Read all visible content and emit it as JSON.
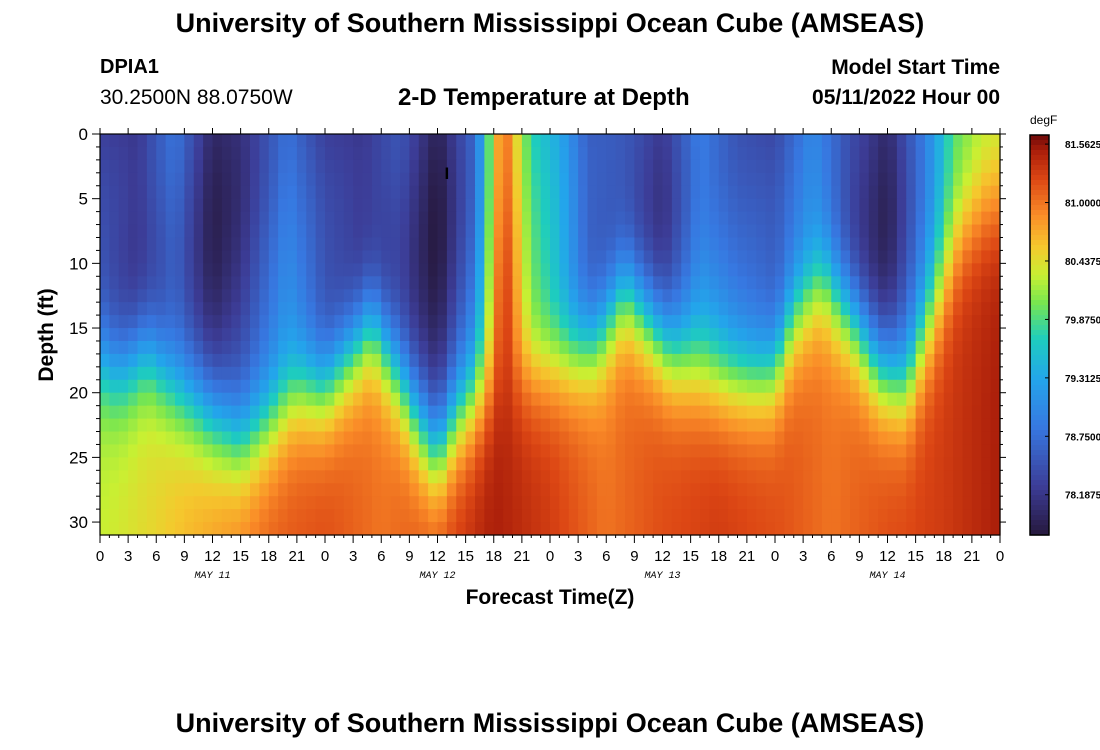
{
  "header": {
    "title": "University of Southern Mississippi Ocean Cube (AMSEAS)",
    "station_id": "DPIA1",
    "station_coords": "30.2500N  88.0750W",
    "plot_title": "2-D Temperature at Depth",
    "model_start_label": "Model Start Time",
    "model_start_value": "05/11/2022 Hour 00"
  },
  "footer": {
    "title": "University of Southern Mississippi Ocean Cube (AMSEAS)"
  },
  "chart_data": {
    "type": "heatmap",
    "title": "2-D Temperature at Depth",
    "xlabel": "Forecast Time(Z)",
    "ylabel": "Depth (ft)",
    "x_tick_labels": [
      "0",
      "3",
      "6",
      "9",
      "12",
      "15",
      "18",
      "21",
      "0",
      "3",
      "6",
      "9",
      "12",
      "15",
      "18",
      "21",
      "0",
      "3",
      "6",
      "9",
      "12",
      "15",
      "18",
      "21",
      "0",
      "3",
      "6",
      "9",
      "12",
      "15",
      "18",
      "21",
      "0"
    ],
    "day_labels": [
      "MAY 11",
      "MAY 12",
      "MAY 13",
      "MAY 14"
    ],
    "xlim_hours": [
      0,
      96
    ],
    "y_ticks": [
      0,
      5,
      10,
      15,
      20,
      25,
      30
    ],
    "ylim": [
      0,
      31
    ],
    "y_inverted": true,
    "colorbar": {
      "unit": "degF",
      "tick_labels": [
        "81.5625",
        "81.0000",
        "80.4375",
        "79.8750",
        "79.3125",
        "78.7500",
        "78.1875"
      ],
      "tick_values": [
        81.5625,
        81.0,
        80.4375,
        79.875,
        79.3125,
        78.75,
        78.1875
      ],
      "range": [
        77.8,
        81.65
      ]
    },
    "marker": {
      "hour": 37,
      "depth": 3,
      "symbol": "I"
    },
    "thermocline_depth_by_hour": [
      [
        0,
        17
      ],
      [
        2,
        18
      ],
      [
        5,
        16.5
      ],
      [
        8,
        20
      ],
      [
        12,
        22
      ],
      [
        15,
        23.5
      ],
      [
        18,
        22
      ],
      [
        21,
        19.5
      ],
      [
        24,
        19.5
      ],
      [
        26,
        17.5
      ],
      [
        29,
        14.5
      ],
      [
        31,
        17.5
      ],
      [
        34,
        22.5
      ],
      [
        36,
        24.5
      ],
      [
        38,
        22
      ],
      [
        41,
        19.5
      ],
      [
        44,
        18
      ],
      [
        47,
        17.5
      ],
      [
        50,
        17
      ],
      [
        53,
        16
      ],
      [
        56,
        12
      ],
      [
        59,
        15
      ],
      [
        61,
        17
      ],
      [
        64,
        18
      ],
      [
        67,
        18.5
      ],
      [
        70,
        18.5
      ],
      [
        72,
        18
      ],
      [
        74,
        14
      ],
      [
        77,
        11
      ],
      [
        80,
        14
      ],
      [
        83,
        18
      ],
      [
        86,
        19.5
      ],
      [
        89,
        14
      ],
      [
        92,
        8
      ],
      [
        95,
        6
      ],
      [
        96,
        6
      ]
    ],
    "surface_temp_by_hour": [
      [
        0,
        78.3
      ],
      [
        4,
        78.1
      ],
      [
        8,
        78.7
      ],
      [
        12,
        78.0
      ],
      [
        15,
        78.2
      ],
      [
        20,
        78.9
      ],
      [
        24,
        78.3
      ],
      [
        28,
        78.1
      ],
      [
        32,
        78.4
      ],
      [
        36,
        77.9
      ],
      [
        40,
        78.8
      ],
      [
        43,
        81.3
      ],
      [
        46,
        79.8
      ],
      [
        49,
        79.3
      ],
      [
        52,
        78.5
      ],
      [
        56,
        78.4
      ],
      [
        60,
        78.2
      ],
      [
        64,
        79.0
      ],
      [
        68,
        78.6
      ],
      [
        72,
        78.4
      ],
      [
        76,
        78.9
      ],
      [
        80,
        78.3
      ],
      [
        84,
        78.0
      ],
      [
        88,
        79.0
      ],
      [
        91,
        80.0
      ],
      [
        94,
        80.3
      ],
      [
        96,
        80.3
      ]
    ],
    "bottom_temp_by_hour": [
      [
        0,
        80.3
      ],
      [
        6,
        80.5
      ],
      [
        12,
        80.8
      ],
      [
        18,
        81.1
      ],
      [
        24,
        81.2
      ],
      [
        30,
        81.0
      ],
      [
        36,
        81.2
      ],
      [
        42,
        81.5
      ],
      [
        48,
        81.3
      ],
      [
        54,
        81.0
      ],
      [
        60,
        81.2
      ],
      [
        66,
        81.3
      ],
      [
        72,
        81.2
      ],
      [
        78,
        81.0
      ],
      [
        84,
        81.2
      ],
      [
        90,
        81.3
      ],
      [
        96,
        81.5
      ]
    ]
  }
}
